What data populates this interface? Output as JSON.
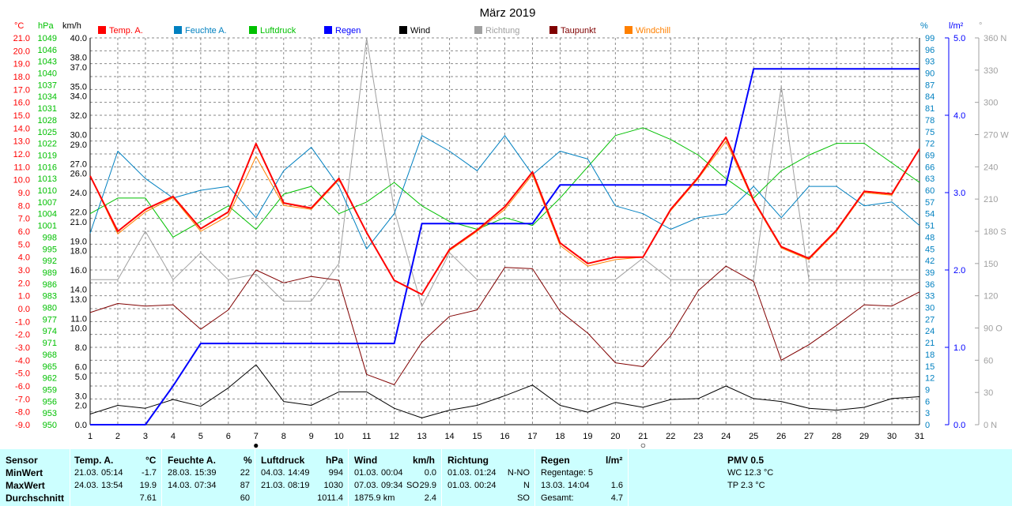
{
  "title": "März 2019",
  "axis_units": {
    "temp": "°C",
    "pressure": "hPa",
    "wind": "km/h",
    "humidity": "%",
    "rain": "l/m²",
    "direction": "°"
  },
  "legend": [
    {
      "key": "temp",
      "label": "Temp. A.",
      "color": "#ff0000"
    },
    {
      "key": "humidity",
      "label": "Feuchte A.",
      "color": "#0080c0"
    },
    {
      "key": "pressure",
      "label": "Luftdruck",
      "color": "#00c000"
    },
    {
      "key": "rain",
      "label": "Regen",
      "color": "#0000ff"
    },
    {
      "key": "wind",
      "label": "Wind",
      "color": "#000000"
    },
    {
      "key": "direction",
      "label": "Richtung",
      "color": "#a0a0a0"
    },
    {
      "key": "dew",
      "label": "Taupunkt",
      "color": "#800000"
    },
    {
      "key": "windchill",
      "label": "Windchill",
      "color": "#ff8000"
    }
  ],
  "chart_data": {
    "type": "line",
    "title": "März 2019",
    "x": [
      1,
      2,
      3,
      4,
      5,
      6,
      7,
      8,
      9,
      10,
      11,
      12,
      13,
      14,
      15,
      16,
      17,
      18,
      19,
      20,
      21,
      22,
      23,
      24,
      25,
      26,
      27,
      28,
      29,
      30,
      31
    ],
    "axes": {
      "temp": {
        "ylim": [
          -9,
          21
        ],
        "ticks": [
          21.0,
          20.0,
          19.0,
          18.0,
          17.0,
          16.0,
          15.0,
          14.0,
          13.0,
          12.0,
          11.0,
          10.0,
          9.0,
          8.0,
          7.0,
          6.0,
          5.0,
          4.0,
          3.0,
          2.0,
          1.0,
          0.0,
          -1.0,
          -2.0,
          -3.0,
          -4.0,
          -5.0,
          -6.0,
          -7.0,
          -8.0,
          -9.0
        ]
      },
      "pressure": {
        "ylim": [
          950,
          1049
        ],
        "ticks": [
          1049,
          1046,
          1043,
          1040,
          1037,
          1034,
          1031,
          1028,
          1025,
          1022,
          1019,
          1016,
          1013,
          1010,
          1007,
          1004,
          1001,
          998,
          995,
          992,
          989,
          986,
          983,
          980,
          977,
          974,
          971,
          968,
          965,
          962,
          959,
          956,
          953,
          950
        ]
      },
      "wind": {
        "ylim": [
          0,
          40
        ],
        "ticks": [
          40.0,
          38.0,
          37.0,
          35.0,
          34.0,
          32.0,
          30.0,
          29.0,
          27.0,
          26.0,
          24.0,
          22.0,
          21.0,
          19.0,
          18.0,
          16.0,
          14.0,
          13.0,
          11.0,
          10.0,
          8.0,
          6.0,
          5.0,
          3.0,
          2.0,
          0.0
        ]
      },
      "humidity": {
        "ylim": [
          0,
          99
        ],
        "ticks": [
          99,
          96,
          93,
          90,
          87,
          84,
          81,
          78,
          75,
          72,
          69,
          66,
          63,
          60,
          57,
          54,
          51,
          48,
          45,
          42,
          39,
          36,
          33,
          30,
          27,
          24,
          21,
          18,
          15,
          12,
          9,
          6,
          3,
          0
        ]
      },
      "rain": {
        "ylim": [
          0,
          5
        ],
        "ticks": [
          "5.0",
          "4.0",
          "3.0",
          "2.0",
          "1.0",
          "0.0"
        ]
      },
      "direction": {
        "ylim": [
          0,
          360
        ],
        "ticks": [
          "360 N",
          "330",
          "300",
          "270 W",
          "240",
          "210",
          "180 S",
          "150",
          "120",
          "90 O",
          "60",
          "30",
          "0 N"
        ]
      }
    },
    "x_markers": [
      {
        "x": 7,
        "symbol": "●"
      },
      {
        "x": 21,
        "symbol": "○"
      }
    ],
    "series": [
      {
        "key": "temp",
        "name": "Temp. A.",
        "unit": "°C",
        "values": [
          10.3,
          6.0,
          7.7,
          8.7,
          6.2,
          7.5,
          12.8,
          8.2,
          7.8,
          10.1,
          5.9,
          2.2,
          1.1,
          4.6,
          6.1,
          7.9,
          10.6,
          5.1,
          3.5,
          4.0,
          4.0,
          7.7,
          10.2,
          13.3,
          8.4,
          4.8,
          3.9,
          6.1,
          9.1,
          8.9,
          12.4
        ]
      },
      {
        "key": "humidity",
        "name": "Feuchte A.",
        "unit": "%",
        "values": [
          49,
          70,
          63,
          58,
          60,
          61,
          53,
          65,
          71,
          61,
          45,
          54,
          74,
          70,
          65,
          74,
          64,
          70,
          68,
          56,
          54,
          50,
          53,
          54,
          61,
          53,
          61,
          61,
          56,
          57,
          51
        ]
      },
      {
        "key": "pressure",
        "name": "Luftdruck",
        "unit": "hPa",
        "values": [
          1004,
          1008,
          1008,
          998,
          1002,
          1006,
          1000,
          1009,
          1011,
          1004,
          1007,
          1012,
          1006,
          1002,
          1000,
          1003,
          1001,
          1008,
          1016,
          1024,
          1026,
          1023,
          1019,
          1013,
          1008,
          1015,
          1019,
          1022,
          1022,
          1017,
          1012
        ]
      },
      {
        "key": "rain",
        "name": "Regen",
        "unit": "l/m²",
        "values": [
          0,
          0,
          0,
          0.5,
          1.05,
          1.05,
          1.05,
          1.05,
          1.05,
          1.05,
          1.05,
          1.05,
          2.6,
          2.6,
          2.6,
          2.6,
          2.6,
          3.1,
          3.1,
          3.1,
          3.1,
          3.1,
          3.1,
          3.1,
          4.6,
          4.6,
          4.6,
          4.6,
          4.6,
          4.6,
          4.6
        ]
      },
      {
        "key": "wind",
        "name": "Wind",
        "unit": "km/h",
        "values": [
          1.1,
          2.0,
          1.7,
          2.6,
          1.9,
          3.8,
          6.2,
          2.4,
          2.0,
          3.4,
          3.4,
          1.7,
          0.7,
          1.5,
          2.0,
          3.0,
          4.1,
          2.0,
          1.3,
          2.3,
          1.8,
          2.6,
          2.7,
          4.0,
          2.7,
          2.4,
          1.7,
          1.5,
          1.8,
          2.7,
          2.9
        ]
      },
      {
        "key": "direction",
        "name": "Richtung",
        "unit": "°",
        "values": [
          135,
          135,
          180,
          135,
          160,
          135,
          140,
          115,
          115,
          150,
          360,
          200,
          110,
          160,
          135,
          135,
          135,
          135,
          135,
          135,
          155,
          135,
          135,
          135,
          135,
          315,
          135,
          135,
          135,
          135,
          135
        ]
      },
      {
        "key": "dew",
        "name": "Taupunkt",
        "unit": "°C",
        "values": [
          -0.3,
          0.4,
          0.2,
          0.3,
          -1.6,
          -0.1,
          3.0,
          2.0,
          2.5,
          2.2,
          -5.1,
          -5.9,
          -2.6,
          -0.6,
          -0.1,
          3.2,
          3.1,
          -0.2,
          -1.9,
          -4.2,
          -4.5,
          -2.1,
          1.4,
          3.3,
          2.1,
          -4.0,
          -2.8,
          -1.3,
          0.3,
          0.2,
          1.3
        ]
      },
      {
        "key": "windchill",
        "name": "Windchill",
        "unit": "°C",
        "values": [
          10.3,
          5.8,
          7.5,
          8.6,
          6.0,
          7.2,
          11.8,
          8.0,
          7.7,
          10.0,
          5.9,
          2.2,
          1.1,
          4.5,
          6.0,
          7.7,
          10.4,
          4.9,
          3.3,
          3.8,
          4.0,
          7.6,
          10.1,
          13.0,
          8.3,
          4.7,
          3.8,
          6.0,
          9.0,
          8.8,
          12.4
        ]
      }
    ]
  },
  "stats": {
    "sensor": {
      "header": "Sensor",
      "rows": [
        "MinWert",
        "MaxWert",
        "Durchschnitt"
      ]
    },
    "temp": {
      "header": "Temp. A.",
      "unit": "°C",
      "min": {
        "date": "21.03.",
        "time": "05:14",
        "value": "-1.7"
      },
      "max": {
        "date": "24.03.",
        "time": "13:54",
        "value": "19.9"
      },
      "avg": "7.61"
    },
    "humidity": {
      "header": "Feuchte A.",
      "unit": "%",
      "min": {
        "date": "28.03.",
        "time": "15:39",
        "value": "22"
      },
      "max": {
        "date": "14.03.",
        "time": "07:34",
        "value": "87"
      },
      "avg": "60"
    },
    "pressure": {
      "header": "Luftdruck",
      "unit": "hPa",
      "min": {
        "date": "04.03.",
        "time": "14:49",
        "value": "994"
      },
      "max": {
        "date": "21.03.",
        "time": "08:19",
        "value": "1030"
      },
      "avg": "1011.4"
    },
    "wind": {
      "header": "Wind",
      "unit": "km/h",
      "min": {
        "date": "01.03.",
        "time": "00:04",
        "value": "0.0"
      },
      "max": {
        "date": "07.03.",
        "time": "09:34",
        "dir": "SO",
        "value": "29.9"
      },
      "dist": "1875.9 km",
      "avg": "2.4"
    },
    "direction": {
      "header": "Richtung",
      "min": {
        "date": "01.03.",
        "time": "01:24",
        "value": "N-NO"
      },
      "max": {
        "date": "01.03.",
        "time": "00:24",
        "value": "N"
      },
      "avg": "SO"
    },
    "rain": {
      "header": "Regen",
      "unit": "l/m²",
      "row1": "Regentage: 5",
      "row2": {
        "date": "13.03.",
        "time": "14:04",
        "value": "1.6"
      },
      "row3": {
        "label": "Gesamt:",
        "value": "4.7"
      }
    },
    "pmv": {
      "header": "PMV 0.5",
      "wc": "WC 12.3 °C",
      "tp": "TP 2.3 °C"
    }
  }
}
